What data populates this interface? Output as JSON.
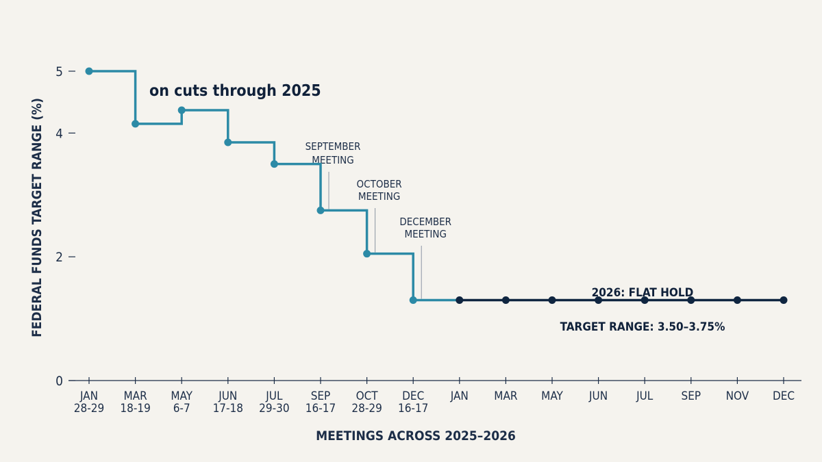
{
  "chart_data": {
    "type": "line",
    "step": "after",
    "title": "",
    "headline_fragment": "on cuts through 2025",
    "xlabel": "MEETINGS ACROSS 2025–2026",
    "ylabel": "FEDERAL FUNDS TARGET RANGE (%)",
    "ylim": [
      0,
      5.4
    ],
    "yticks": [
      0,
      2,
      4,
      5
    ],
    "grid": false,
    "categories": [
      [
        "JAN",
        "28-29"
      ],
      [
        "MAR",
        "18-19"
      ],
      [
        "MAY",
        "6-7"
      ],
      [
        "JUN",
        "17-18"
      ],
      [
        "JUL",
        "29-30"
      ],
      [
        "SEP",
        "16-17"
      ],
      [
        "OCT",
        "28-29"
      ],
      [
        "DEC",
        "16-17"
      ],
      [
        "JAN"
      ],
      [
        "MAR"
      ],
      [
        "MAY"
      ],
      [
        "JUN"
      ],
      [
        "JUL"
      ],
      [
        "SEP"
      ],
      [
        "NOV"
      ],
      [
        "DEC"
      ]
    ],
    "series": [
      {
        "values": [
          5.0,
          4.15,
          4.37,
          3.85,
          3.5,
          2.75,
          2.05,
          1.3,
          1.3,
          1.3,
          1.3,
          1.3,
          1.3,
          1.3,
          1.3,
          1.3
        ],
        "colors": {
          "2025": "#2c8aa6",
          "2026": "#0f2540"
        }
      }
    ],
    "annotations": [
      {
        "index": 5,
        "lines": [
          "SEPTEMBER",
          "MEETING"
        ]
      },
      {
        "index": 6,
        "lines": [
          "OCTOBER",
          "MEETING"
        ]
      },
      {
        "index": 7,
        "lines": [
          "DECEMBER",
          "MEETING"
        ]
      }
    ],
    "callouts": {
      "hold": "2026: FLAT HOLD",
      "range": "TARGET RANGE: 3.50–3.75%"
    }
  },
  "colors": {
    "background": "#f5f3ee",
    "axis": "#1c2d47",
    "cut_line": "#2c8aa6",
    "hold_line": "#0f2540"
  }
}
